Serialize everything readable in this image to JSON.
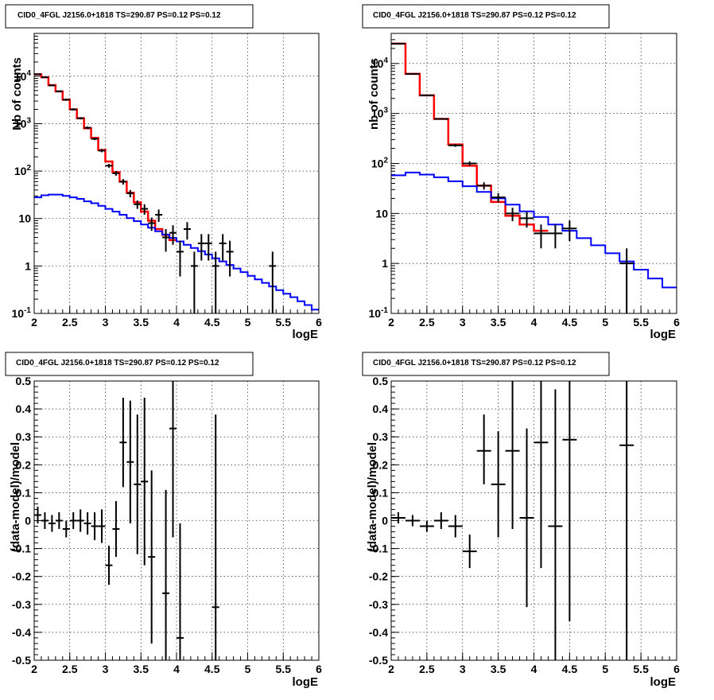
{
  "chart_data": [
    {
      "type": "step-histogram",
      "title": "CID0_4FGL J2156.0+1818 TS=290.87 PS=0.12 PS=0.12",
      "xlabel": "logE",
      "ylabel": "Nb of counts",
      "xlim": [
        2,
        6
      ],
      "ylim": [
        0.1,
        80000
      ],
      "y_scale": "log",
      "x_ticks": [
        "2",
        "2.5",
        "3",
        "3.5",
        "4",
        "4.5",
        "5",
        "5.5",
        "6"
      ],
      "y_ticks": [
        "10^-1",
        "1",
        "10",
        "10^2",
        "10^3",
        "10^4"
      ],
      "grid": true,
      "series": [
        {
          "color": "#ff0000",
          "style": "step",
          "bin_edges": [
            2.0,
            2.1,
            2.2,
            2.3,
            2.4,
            2.5,
            2.6,
            2.7,
            2.8,
            2.9,
            3.0,
            3.1,
            3.2,
            3.3,
            3.4,
            3.5,
            3.6,
            3.7,
            3.8,
            3.9,
            4.0
          ],
          "values": [
            11000,
            9500,
            6500,
            4800,
            3200,
            2000,
            1300,
            800,
            500,
            280,
            160,
            95,
            60,
            35,
            22,
            14,
            9,
            6,
            4.5,
            3.5
          ]
        },
        {
          "color": "#0000ff",
          "style": "step",
          "bin_edges": [
            2.0,
            2.1,
            2.2,
            2.3,
            2.4,
            2.5,
            2.6,
            2.7,
            2.8,
            2.9,
            3.0,
            3.1,
            3.2,
            3.3,
            3.4,
            3.5,
            3.6,
            3.7,
            3.8,
            3.9,
            4.0,
            4.1,
            4.2,
            4.3,
            4.4,
            4.5,
            4.6,
            4.7,
            4.8,
            4.9,
            5.0,
            5.1,
            5.2,
            5.3,
            5.4,
            5.5,
            5.6,
            5.7,
            5.8,
            5.9,
            6.0
          ],
          "values": [
            28,
            31,
            32,
            32,
            30,
            28,
            26,
            23,
            21,
            18.5,
            16,
            14,
            12,
            10.2,
            8.8,
            7.5,
            6.4,
            5.4,
            4.6,
            3.9,
            3.3,
            2.8,
            2.4,
            2.05,
            1.75,
            1.45,
            1.25,
            1.05,
            0.88,
            0.74,
            0.62,
            0.52,
            0.44,
            0.37,
            0.31,
            0.26,
            0.22,
            0.18,
            0.15,
            0.12
          ]
        }
      ],
      "points": [
        {
          "x": 2.05,
          "y": 11000,
          "y_low": 10700,
          "y_high": 11300
        },
        {
          "x": 2.15,
          "y": 9500,
          "y_low": 9200,
          "y_high": 9800
        },
        {
          "x": 2.25,
          "y": 6400,
          "y_low": 6200,
          "y_high": 6600
        },
        {
          "x": 2.35,
          "y": 4800,
          "y_low": 4600,
          "y_high": 5000
        },
        {
          "x": 2.45,
          "y": 3200,
          "y_low": 3050,
          "y_high": 3350
        },
        {
          "x": 2.55,
          "y": 2000,
          "y_low": 1900,
          "y_high": 2100
        },
        {
          "x": 2.65,
          "y": 1300,
          "y_low": 1230,
          "y_high": 1370
        },
        {
          "x": 2.75,
          "y": 820,
          "y_low": 770,
          "y_high": 870
        },
        {
          "x": 2.85,
          "y": 480,
          "y_low": 450,
          "y_high": 510
        },
        {
          "x": 2.95,
          "y": 270,
          "y_low": 250,
          "y_high": 290
        },
        {
          "x": 3.05,
          "y": 130,
          "y_low": 118,
          "y_high": 142
        },
        {
          "x": 3.15,
          "y": 90,
          "y_low": 80,
          "y_high": 100
        },
        {
          "x": 3.25,
          "y": 60,
          "y_low": 52,
          "y_high": 68
        },
        {
          "x": 3.35,
          "y": 34,
          "y_low": 28,
          "y_high": 40
        },
        {
          "x": 3.45,
          "y": 20,
          "y_low": 16,
          "y_high": 24
        },
        {
          "x": 3.55,
          "y": 16,
          "y_low": 12,
          "y_high": 20
        },
        {
          "x": 3.65,
          "y": 8,
          "y_low": 5.5,
          "y_high": 10.5
        },
        {
          "x": 3.75,
          "y": 12,
          "y_low": 8.5,
          "y_high": 15.5
        },
        {
          "x": 3.85,
          "y": 4,
          "y_low": 2,
          "y_high": 6
        },
        {
          "x": 3.95,
          "y": 5,
          "y_low": 2.8,
          "y_high": 7.2
        },
        {
          "x": 4.05,
          "y": 2,
          "y_low": 0.6,
          "y_high": 3.4
        },
        {
          "x": 4.15,
          "y": 6,
          "y_low": 3.6,
          "y_high": 8.4
        },
        {
          "x": 4.25,
          "y": 1,
          "y_low": 0.1,
          "y_high": 2
        },
        {
          "x": 4.35,
          "y": 3,
          "y_low": 1.3,
          "y_high": 4.7
        },
        {
          "x": 4.45,
          "y": 3,
          "y_low": 1.3,
          "y_high": 4.7
        },
        {
          "x": 4.55,
          "y": 1,
          "y_low": 0.1,
          "y_high": 2
        },
        {
          "x": 4.65,
          "y": 3,
          "y_low": 1.3,
          "y_high": 4.7
        },
        {
          "x": 4.75,
          "y": 2,
          "y_low": 0.6,
          "y_high": 3.4
        },
        {
          "x": 5.35,
          "y": 1,
          "y_low": 0.1,
          "y_high": 2
        }
      ]
    },
    {
      "type": "step-histogram",
      "title": "CID0_4FGL J2156.0+1818 TS=290.87 PS=0.12 PS=0.12",
      "xlabel": "logE",
      "ylabel": "nb of counts",
      "xlim": [
        2,
        6
      ],
      "ylim": [
        0.1,
        40000
      ],
      "y_scale": "log",
      "x_ticks": [
        "2",
        "2.5",
        "3",
        "3.5",
        "4",
        "4.5",
        "5",
        "5.5",
        "6"
      ],
      "y_ticks": [
        "10^-1",
        "1",
        "10",
        "10^2",
        "10^3",
        "10^4"
      ],
      "grid": true,
      "series": [
        {
          "color": "#ff0000",
          "style": "step",
          "bin_edges": [
            2.0,
            2.2,
            2.4,
            2.6,
            2.8,
            3.0,
            3.2,
            3.4,
            3.6,
            3.8,
            4.0,
            4.2
          ],
          "values": [
            25000,
            6200,
            2300,
            780,
            240,
            90,
            36,
            17,
            9,
            6,
            4.5
          ]
        },
        {
          "color": "#0000ff",
          "style": "step",
          "bin_edges": [
            2.0,
            2.2,
            2.4,
            2.6,
            2.8,
            3.0,
            3.2,
            3.4,
            3.6,
            3.8,
            4.0,
            4.2,
            4.4,
            4.6,
            4.8,
            5.0,
            5.2,
            5.4,
            5.6,
            5.8,
            6.0
          ],
          "values": [
            58,
            66,
            60,
            53,
            44,
            35,
            27,
            20,
            15,
            11,
            8.5,
            6,
            4.5,
            3.2,
            2.3,
            1.6,
            1.1,
            0.75,
            0.5,
            0.33
          ]
        }
      ],
      "points": [
        {
          "x": 2.1,
          "y": 25000,
          "y_low": 24500,
          "y_high": 25500
        },
        {
          "x": 2.3,
          "y": 6200,
          "y_low": 6000,
          "y_high": 6400
        },
        {
          "x": 2.5,
          "y": 2300,
          "y_low": 2200,
          "y_high": 2400
        },
        {
          "x": 2.7,
          "y": 780,
          "y_low": 750,
          "y_high": 810
        },
        {
          "x": 2.9,
          "y": 230,
          "y_low": 215,
          "y_high": 245
        },
        {
          "x": 3.1,
          "y": 100,
          "y_low": 90,
          "y_high": 110
        },
        {
          "x": 3.3,
          "y": 36,
          "y_low": 30,
          "y_high": 42
        },
        {
          "x": 3.5,
          "y": 21,
          "y_low": 16.5,
          "y_high": 25.5
        },
        {
          "x": 3.7,
          "y": 10,
          "y_low": 7,
          "y_high": 13
        },
        {
          "x": 3.9,
          "y": 8,
          "y_low": 5.2,
          "y_high": 10.8
        },
        {
          "x": 4.1,
          "y": 4,
          "y_low": 2,
          "y_high": 6
        },
        {
          "x": 4.3,
          "y": 4,
          "y_low": 2,
          "y_high": 6
        },
        {
          "x": 4.5,
          "y": 5,
          "y_low": 2.8,
          "y_high": 7.2
        },
        {
          "x": 5.3,
          "y": 1,
          "y_low": 0.1,
          "y_high": 2
        }
      ]
    },
    {
      "type": "scatter",
      "title": "CID0_4FGL J2156.0+1818 TS=290.87 PS=0.12 PS=0.12",
      "xlabel": "logE",
      "ylabel": "(data-model)/model",
      "xlim": [
        2,
        6
      ],
      "ylim": [
        -0.5,
        0.5
      ],
      "x_ticks": [
        "2",
        "2.5",
        "3",
        "3.5",
        "4",
        "4.5",
        "5",
        "5.5",
        "6"
      ],
      "y_ticks": [
        "-0.5",
        "-0.4",
        "-0.3",
        "-0.2",
        "-0.1",
        "0",
        "0.1",
        "0.2",
        "0.3",
        "0.4",
        "0.5"
      ],
      "grid": true,
      "bin_half_width": 0.05,
      "points": [
        {
          "x": 2.05,
          "y": 0.02,
          "y_low": -0.01,
          "y_high": 0.05
        },
        {
          "x": 2.15,
          "y": 0.0,
          "y_low": -0.03,
          "y_high": 0.03
        },
        {
          "x": 2.25,
          "y": -0.01,
          "y_low": -0.04,
          "y_high": 0.02
        },
        {
          "x": 2.35,
          "y": 0.0,
          "y_low": -0.03,
          "y_high": 0.03
        },
        {
          "x": 2.45,
          "y": -0.03,
          "y_low": -0.06,
          "y_high": 0.0
        },
        {
          "x": 2.55,
          "y": 0.0,
          "y_low": -0.03,
          "y_high": 0.03
        },
        {
          "x": 2.65,
          "y": 0.0,
          "y_low": -0.04,
          "y_high": 0.04
        },
        {
          "x": 2.75,
          "y": -0.01,
          "y_low": -0.05,
          "y_high": 0.03
        },
        {
          "x": 2.85,
          "y": -0.02,
          "y_low": -0.07,
          "y_high": 0.03
        },
        {
          "x": 2.95,
          "y": -0.02,
          "y_low": -0.08,
          "y_high": 0.04
        },
        {
          "x": 3.05,
          "y": -0.16,
          "y_low": -0.23,
          "y_high": -0.09
        },
        {
          "x": 3.15,
          "y": -0.03,
          "y_low": -0.13,
          "y_high": 0.07
        },
        {
          "x": 3.25,
          "y": 0.28,
          "y_low": 0.12,
          "y_high": 0.44
        },
        {
          "x": 3.35,
          "y": 0.21,
          "y_low": -0.01,
          "y_high": 0.43
        },
        {
          "x": 3.45,
          "y": 0.13,
          "y_low": -0.12,
          "y_high": 0.38
        },
        {
          "x": 3.55,
          "y": 0.14,
          "y_low": -0.16,
          "y_high": 0.44
        },
        {
          "x": 3.65,
          "y": -0.13,
          "y_low": -0.44,
          "y_high": 0.18
        },
        {
          "x": 3.85,
          "y": -0.26,
          "y_low": -0.5,
          "y_high": 0.11
        },
        {
          "x": 3.95,
          "y": 0.33,
          "y_low": -0.06,
          "y_high": 0.5
        },
        {
          "x": 4.05,
          "y": -0.42,
          "y_low": -0.5,
          "y_high": -0.01
        },
        {
          "x": 4.55,
          "y": -0.31,
          "y_low": -0.5,
          "y_high": 0.38
        }
      ]
    },
    {
      "type": "scatter",
      "title": "CID0_4FGL J2156.0+1818 TS=290.87 PS=0.12 PS=0.12",
      "xlabel": "logE",
      "ylabel": "(data-model)/model",
      "xlim": [
        2,
        6
      ],
      "ylim": [
        -0.5,
        0.5
      ],
      "x_ticks": [
        "2",
        "2.5",
        "3",
        "3.5",
        "4",
        "4.5",
        "5",
        "5.5",
        "6"
      ],
      "y_ticks": [
        "-0.5",
        "-0.4",
        "-0.3",
        "-0.2",
        "-0.1",
        "0",
        "0.1",
        "0.2",
        "0.3",
        "0.4",
        "0.5"
      ],
      "grid": true,
      "bin_half_width": 0.1,
      "points": [
        {
          "x": 2.1,
          "y": 0.01,
          "y_low": -0.01,
          "y_high": 0.03
        },
        {
          "x": 2.3,
          "y": 0.0,
          "y_low": -0.02,
          "y_high": 0.02
        },
        {
          "x": 2.5,
          "y": -0.02,
          "y_low": -0.04,
          "y_high": 0.0
        },
        {
          "x": 2.7,
          "y": 0.0,
          "y_low": -0.03,
          "y_high": 0.03
        },
        {
          "x": 2.9,
          "y": -0.02,
          "y_low": -0.06,
          "y_high": 0.02
        },
        {
          "x": 3.1,
          "y": -0.11,
          "y_low": -0.17,
          "y_high": -0.05
        },
        {
          "x": 3.3,
          "y": 0.25,
          "y_low": 0.13,
          "y_high": 0.38
        },
        {
          "x": 3.5,
          "y": 0.13,
          "y_low": -0.06,
          "y_high": 0.32
        },
        {
          "x": 3.7,
          "y": 0.25,
          "y_low": -0.03,
          "y_high": 0.5
        },
        {
          "x": 3.9,
          "y": 0.01,
          "y_low": -0.31,
          "y_high": 0.33
        },
        {
          "x": 4.1,
          "y": 0.28,
          "y_low": -0.17,
          "y_high": 0.5
        },
        {
          "x": 4.3,
          "y": -0.02,
          "y_low": -0.5,
          "y_high": 0.47
        },
        {
          "x": 4.5,
          "y": 0.29,
          "y_low": -0.36,
          "y_high": 0.5
        },
        {
          "x": 5.3,
          "y": 0.27,
          "y_low": -0.5,
          "y_high": 0.5
        }
      ]
    }
  ]
}
